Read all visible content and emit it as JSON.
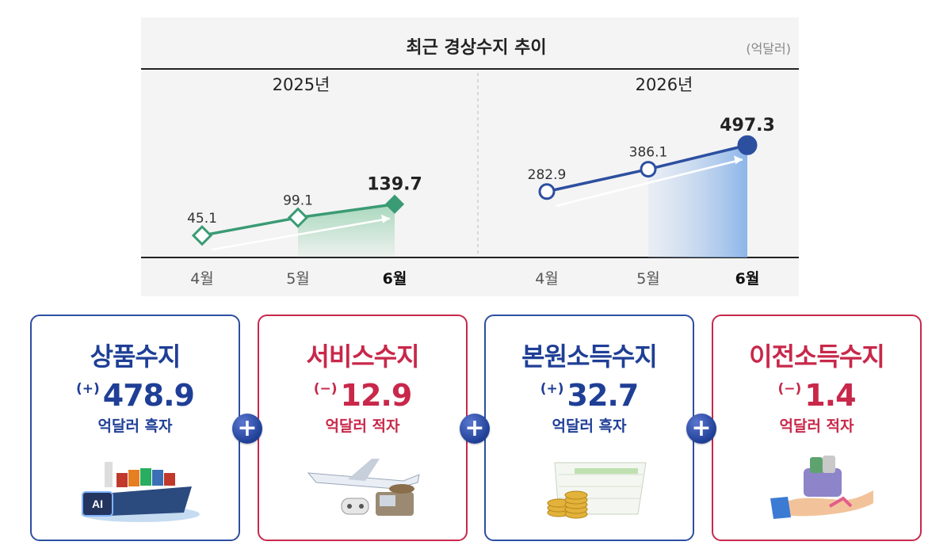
{
  "chart_data": {
    "type": "line",
    "title": "최근 경상수지 추이",
    "unit": "(억달러)",
    "panels": [
      {
        "year": "2025년",
        "categories": [
          "4월",
          "5월",
          "6월"
        ],
        "values": [
          45.1,
          99.1,
          139.7
        ],
        "labels": [
          "45.1",
          "99.1",
          "139.7"
        ],
        "color": "#3a9b74"
      },
      {
        "year": "2026년",
        "categories": [
          "4월",
          "5월",
          "6월"
        ],
        "values": [
          282.9,
          386.1,
          497.3
        ],
        "labels": [
          "282.9",
          "386.1",
          "497.3"
        ],
        "color": "#2d4fa0"
      }
    ],
    "ylim": [
      0,
      600
    ],
    "grid": false
  },
  "cards": [
    {
      "title": "상품수지",
      "sign": "(+)",
      "value": "478.9",
      "unit": "억달러 흑자",
      "style": "blue"
    },
    {
      "title": "서비스수지",
      "sign": "(−)",
      "value": "12.9",
      "unit": "억달러 적자",
      "style": "red"
    },
    {
      "title": "본원소득수지",
      "sign": "(+)",
      "value": "32.7",
      "unit": "억달러 흑자",
      "style": "blue"
    },
    {
      "title": "이전소득수지",
      "sign": "(−)",
      "value": "1.4",
      "unit": "억달러 적자",
      "style": "red"
    }
  ],
  "plus_symbol": "+",
  "icons": [
    "container-ship-ai-icon",
    "airplane-travel-icon",
    "coins-ledger-icon",
    "hand-gift-box-icon"
  ],
  "colors": {
    "blue": "#2d4fa0",
    "red": "#c8284a",
    "green": "#3a9b74"
  }
}
